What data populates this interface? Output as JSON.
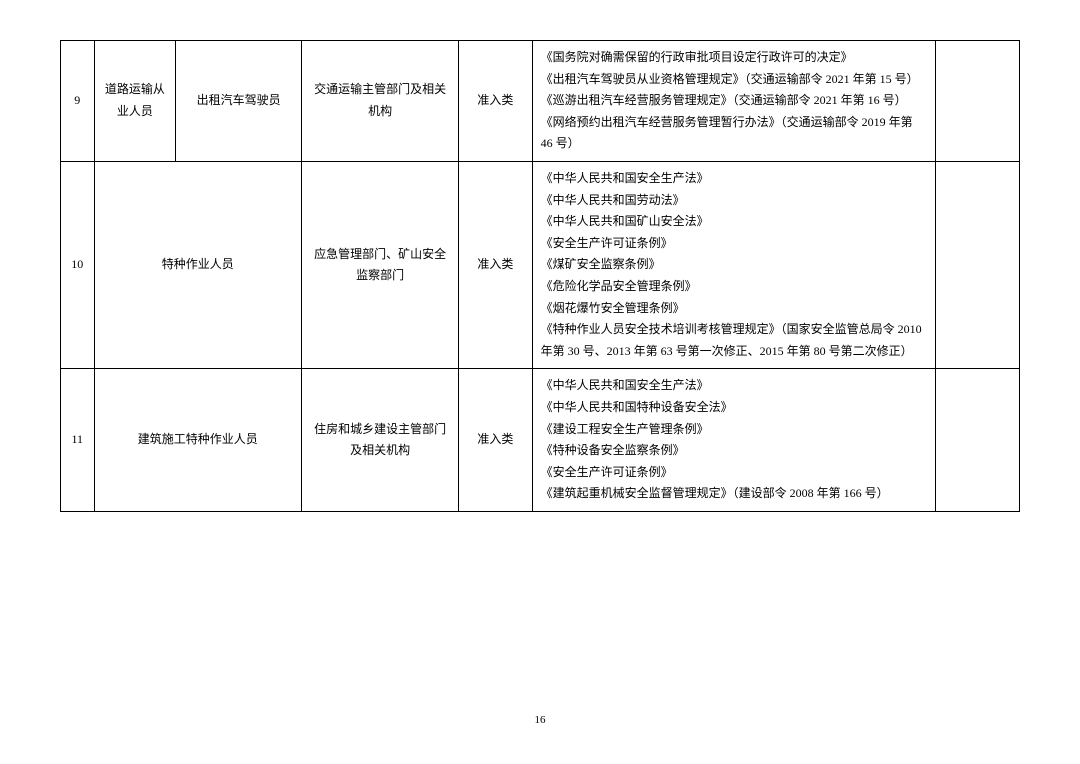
{
  "pageNumber": "16",
  "rows": [
    {
      "num": "9",
      "category": "道路运输从业人员",
      "job": "出租汽车驾驶员",
      "department": "交通运输主管部门及相关机构",
      "type": "准入类",
      "basis": "《国务院对确需保留的行政审批项目设定行政许可的决定》\n《出租汽车驾驶员从业资格管理规定》（交通运输部令 2021 年第 15 号）\n《巡游出租汽车经营服务管理规定》（交通运输部令 2021 年第 16 号）\n《网络预约出租汽车经营服务管理暂行办法》（交通运输部令 2019 年第 46 号）",
      "note": ""
    },
    {
      "num": "10",
      "mergedJob": "特种作业人员",
      "department": "应急管理部门、矿山安全监察部门",
      "type": "准入类",
      "basis": "《中华人民共和国安全生产法》\n《中华人民共和国劳动法》\n《中华人民共和国矿山安全法》\n《安全生产许可证条例》\n《煤矿安全监察条例》\n《危险化学品安全管理条例》\n《烟花爆竹安全管理条例》\n《特种作业人员安全技术培训考核管理规定》（国家安全监管总局令 2010 年第 30 号、2013 年第 63 号第一次修正、2015 年第 80 号第二次修正）",
      "note": ""
    },
    {
      "num": "11",
      "mergedJob": "建筑施工特种作业人员",
      "department": "住房和城乡建设主管部门及相关机构",
      "type": "准入类",
      "basis": "《中华人民共和国安全生产法》\n《中华人民共和国特种设备安全法》\n《建设工程安全生产管理条例》\n《特种设备安全监察条例》\n《安全生产许可证条例》\n《建筑起重机械安全监督管理规定》（建设部令 2008 年第 166 号）",
      "note": ""
    }
  ]
}
